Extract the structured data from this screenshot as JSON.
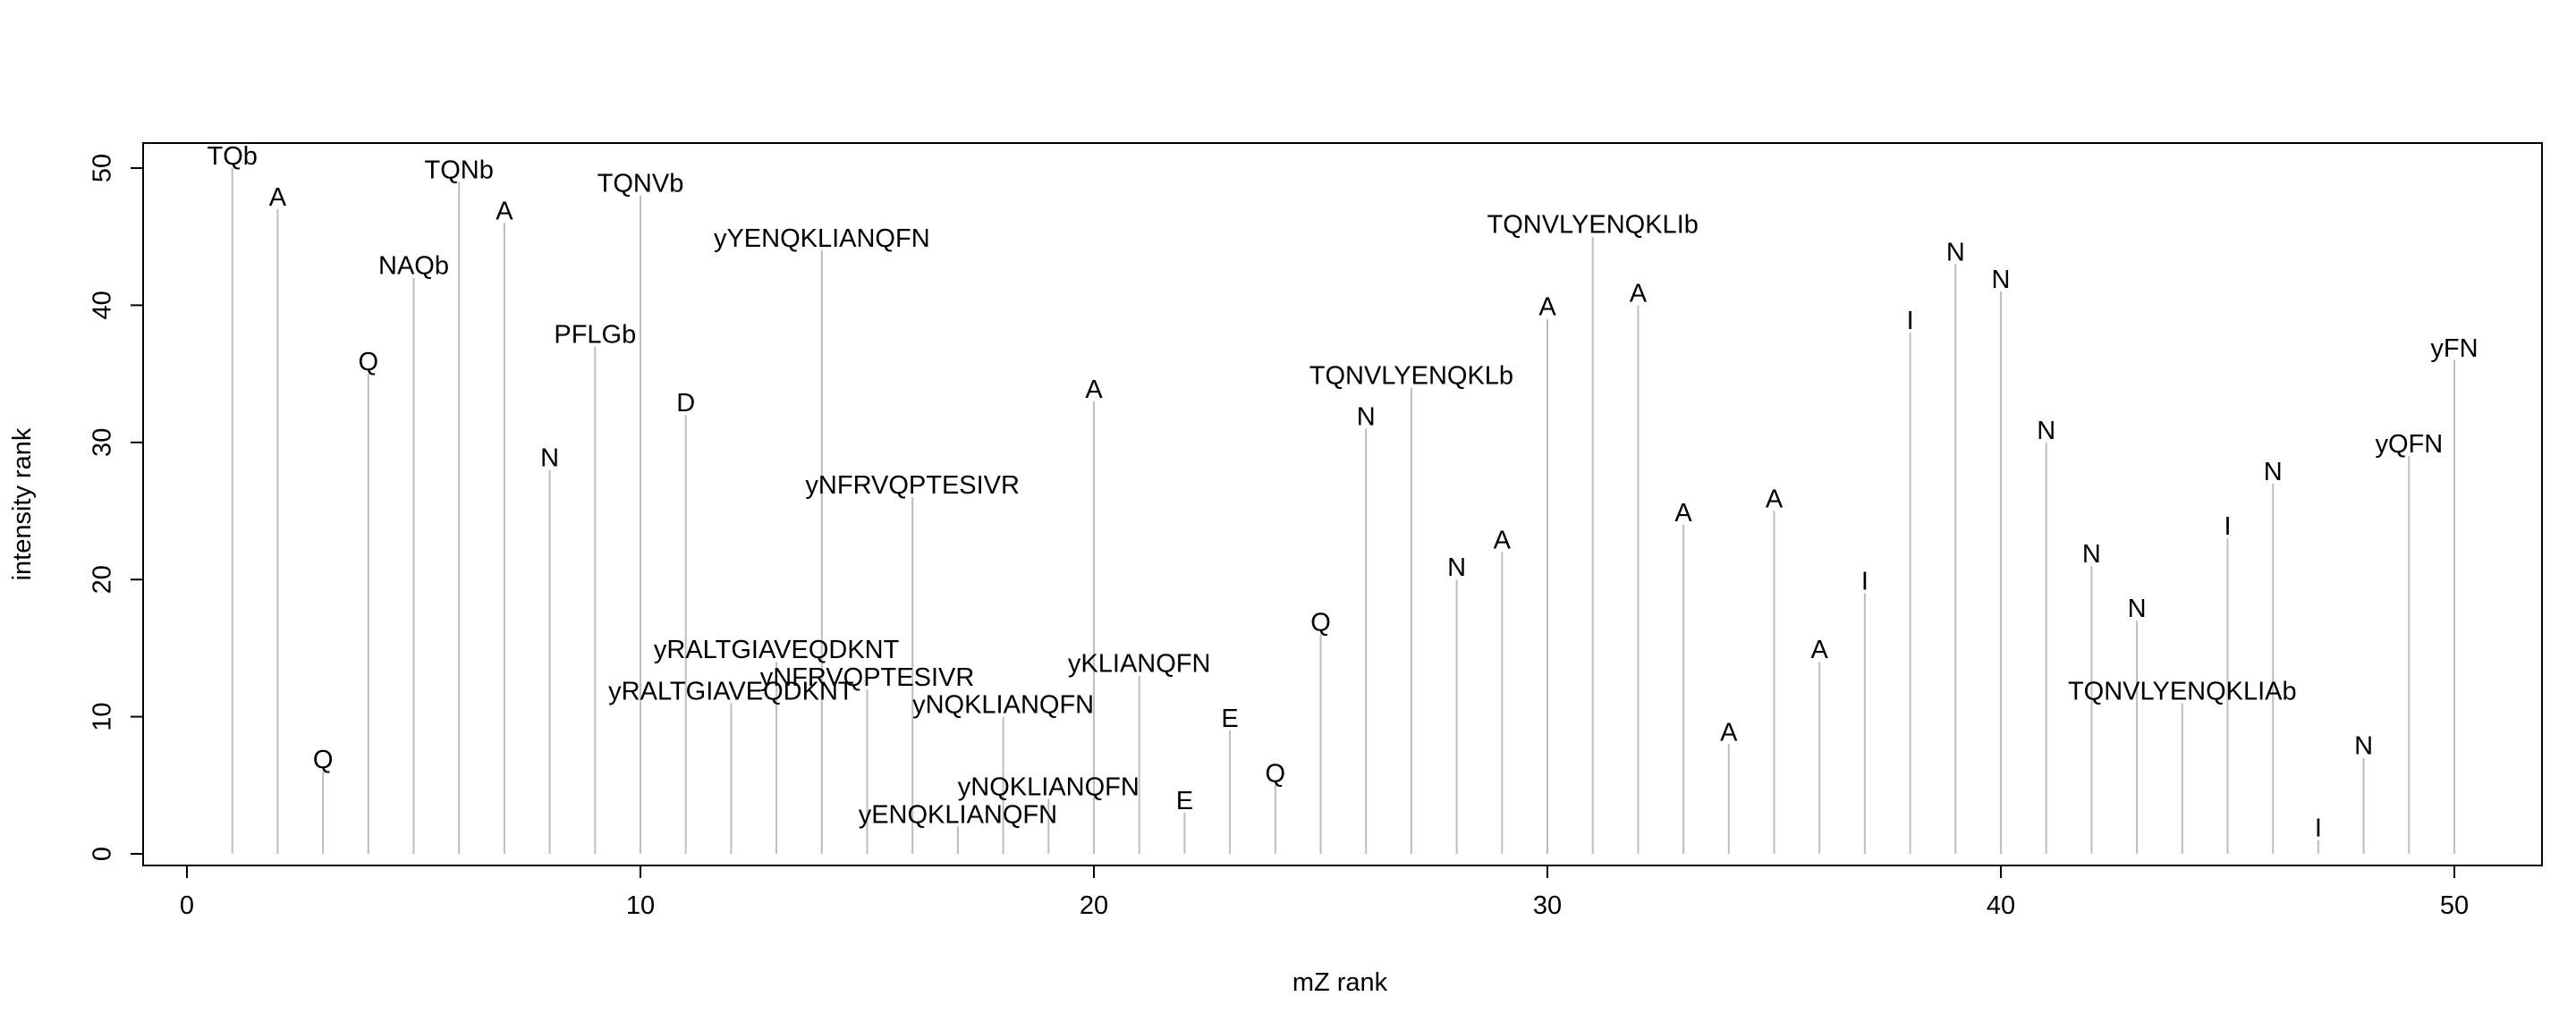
{
  "chart_data": {
    "type": "bar",
    "subtype": "stem",
    "xlabel": "mZ rank",
    "ylabel": "intensity rank",
    "xlim": [
      0,
      52
    ],
    "ylim": [
      0,
      50
    ],
    "xticks": [
      0,
      10,
      20,
      30,
      40,
      50
    ],
    "yticks": [
      0,
      10,
      20,
      30,
      40,
      50
    ],
    "grid": false,
    "colors": {
      "stem": "#bebebe",
      "axis": "#000000",
      "text": "#000000"
    },
    "points": [
      {
        "x": 1,
        "y": 50,
        "label": "TQb"
      },
      {
        "x": 2,
        "y": 47,
        "label": "A"
      },
      {
        "x": 3,
        "y": 6,
        "label": "Q"
      },
      {
        "x": 4,
        "y": 35,
        "label": "Q"
      },
      {
        "x": 5,
        "y": 42,
        "label": "NAQb"
      },
      {
        "x": 6,
        "y": 49,
        "label": "TQNb"
      },
      {
        "x": 7,
        "y": 46,
        "label": "A"
      },
      {
        "x": 8,
        "y": 28,
        "label": "N"
      },
      {
        "x": 9,
        "y": 37,
        "label": "PFLGb"
      },
      {
        "x": 10,
        "y": 48,
        "label": "TQNVb"
      },
      {
        "x": 11,
        "y": 32,
        "label": "D"
      },
      {
        "x": 12,
        "y": 11,
        "label": "yRALTGIAVEQDKNT"
      },
      {
        "x": 13,
        "y": 14,
        "label": "yRALTGIAVEQDKNT"
      },
      {
        "x": 14,
        "y": 44,
        "label": "yYENQKLIANQFN"
      },
      {
        "x": 15,
        "y": 12,
        "label": "yNFRVQPTESIVR"
      },
      {
        "x": 16,
        "y": 26,
        "label": "yNFRVQPTESIVR"
      },
      {
        "x": 17,
        "y": 2,
        "label": "yENQKLIANQFN"
      },
      {
        "x": 18,
        "y": 10,
        "label": "yNQKLIANQFN"
      },
      {
        "x": 19,
        "y": 4,
        "label": "yNQKLIANQFN"
      },
      {
        "x": 20,
        "y": 33,
        "label": "A"
      },
      {
        "x": 21,
        "y": 13,
        "label": "yKLIANQFN"
      },
      {
        "x": 22,
        "y": 3,
        "label": "E"
      },
      {
        "x": 23,
        "y": 9,
        "label": "E"
      },
      {
        "x": 24,
        "y": 5,
        "label": "Q"
      },
      {
        "x": 25,
        "y": 16,
        "label": "Q"
      },
      {
        "x": 26,
        "y": 31,
        "label": "N"
      },
      {
        "x": 27,
        "y": 34,
        "label": "TQNVLYENQKLb"
      },
      {
        "x": 28,
        "y": 20,
        "label": "N"
      },
      {
        "x": 29,
        "y": 22,
        "label": "A"
      },
      {
        "x": 30,
        "y": 39,
        "label": "A"
      },
      {
        "x": 31,
        "y": 45,
        "label": "TQNVLYENQKLIb"
      },
      {
        "x": 32,
        "y": 40,
        "label": "A"
      },
      {
        "x": 33,
        "y": 24,
        "label": "A"
      },
      {
        "x": 34,
        "y": 8,
        "label": "A"
      },
      {
        "x": 35,
        "y": 25,
        "label": "A"
      },
      {
        "x": 36,
        "y": 14,
        "label": "A"
      },
      {
        "x": 37,
        "y": 19,
        "label": "I"
      },
      {
        "x": 38,
        "y": 38,
        "label": "I"
      },
      {
        "x": 39,
        "y": 43,
        "label": "N"
      },
      {
        "x": 40,
        "y": 41,
        "label": "N"
      },
      {
        "x": 41,
        "y": 30,
        "label": "N"
      },
      {
        "x": 42,
        "y": 21,
        "label": "N"
      },
      {
        "x": 43,
        "y": 17,
        "label": "N"
      },
      {
        "x": 44,
        "y": 11,
        "label": "TQNVLYENQKLIAb"
      },
      {
        "x": 45,
        "y": 23,
        "label": "I"
      },
      {
        "x": 46,
        "y": 27,
        "label": "N"
      },
      {
        "x": 47,
        "y": 1,
        "label": "I"
      },
      {
        "x": 48,
        "y": 7,
        "label": "N"
      },
      {
        "x": 49,
        "y": 29,
        "label": "yQFN"
      },
      {
        "x": 50,
        "y": 36,
        "label": "yFN"
      }
    ]
  }
}
